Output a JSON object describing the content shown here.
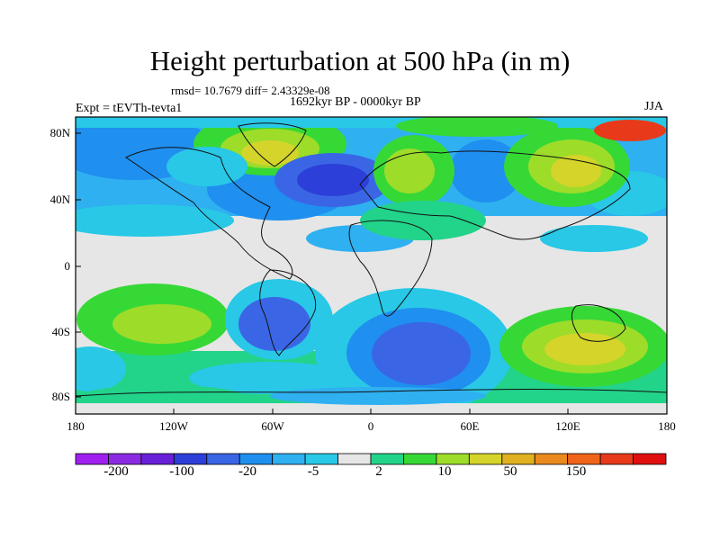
{
  "title": "Height perturbation at 500 hPa (in m)",
  "stats": "rmsd= 10.7679 diff= 2.43329e-08",
  "experiment": "Expt = tEVTh-tevta1",
  "period": "1692kyr BP - 0000kyr BP",
  "season": "JJA",
  "lat_labels": [
    "80N",
    "40N",
    "0",
    "40S",
    "80S"
  ],
  "lon_labels": [
    "180",
    "120W",
    "60W",
    "0",
    "60E",
    "120E",
    "180"
  ],
  "colorbar": {
    "colors": [
      "#a020f0",
      "#8a2be2",
      "#6a1fd8",
      "#2c3fd8",
      "#3a66e6",
      "#1f8ff0",
      "#2fb0f0",
      "#28c8e6",
      "#e6e6e6",
      "#22d38a",
      "#36d836",
      "#9edc2a",
      "#d4d42a",
      "#e0b020",
      "#ea8a1e",
      "#f0641a",
      "#e83a1a",
      "#e01010"
    ],
    "labels": [
      "-200",
      "-100",
      "-20",
      "-5",
      "2",
      "10",
      "50",
      "150"
    ]
  }
}
